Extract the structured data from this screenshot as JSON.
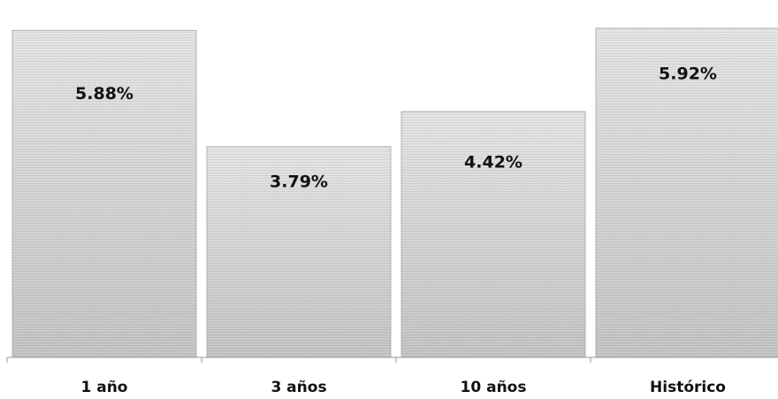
{
  "chart_data": {
    "type": "bar",
    "categories": [
      "1 año",
      "3 años",
      "10 años",
      "Histórico"
    ],
    "values": [
      5.88,
      3.79,
      4.42,
      5.92
    ],
    "data_labels": [
      "5.88%",
      "3.79%",
      "4.42%",
      "5.92%"
    ],
    "title": "",
    "xlabel": "",
    "ylabel": "",
    "ylim": [
      0,
      6.3
    ],
    "grid": false,
    "legend": "none",
    "colors": {
      "bar": "#d2d2d2",
      "bar_edge": "#b0b0b0",
      "axis": "#999999"
    }
  }
}
